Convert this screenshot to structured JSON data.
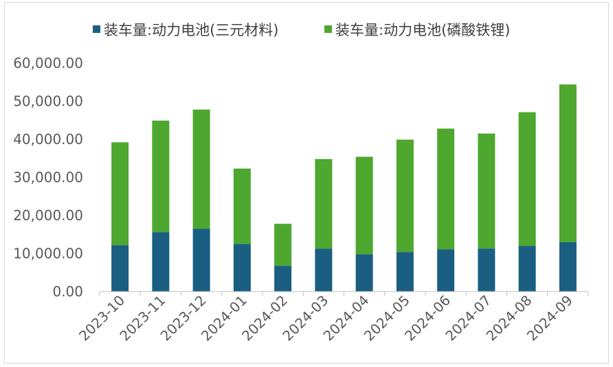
{
  "chart_data": {
    "type": "bar",
    "stacked": true,
    "categories": [
      "2023-10",
      "2023-11",
      "2023-12",
      "2024-01",
      "2024-02",
      "2024-03",
      "2024-04",
      "2024-05",
      "2024-06",
      "2024-07",
      "2024-08",
      "2024-09"
    ],
    "series": [
      {
        "name": "装车量:动力电池(三元材料)",
        "color": "#1a5f82",
        "values": [
          12200,
          15600,
          16500,
          12500,
          6800,
          11300,
          9800,
          10400,
          11100,
          11300,
          12000,
          13000
        ]
      },
      {
        "name": "装车量:动力电池(磷酸铁锂)",
        "color": "#4ea72e",
        "values": [
          27000,
          29300,
          31300,
          19800,
          11000,
          23500,
          25600,
          29500,
          31700,
          30200,
          35100,
          41400
        ]
      }
    ],
    "ylim": [
      0,
      60000
    ],
    "yticks": [
      "0.00",
      "10,000.00",
      "20,000.00",
      "30,000.00",
      "40,000.00",
      "50,000.00",
      "60,000.00"
    ],
    "legend_position": "top",
    "grid": false
  }
}
